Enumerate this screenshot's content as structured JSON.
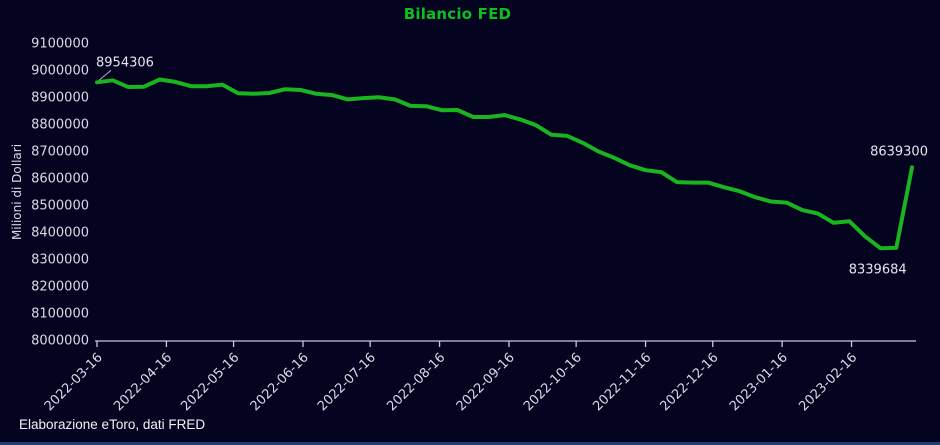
{
  "title": "Bilancio FED",
  "y_axis_title": "Milioni di Dollari",
  "footer": "Elaborazione eToro, dati FRED",
  "colors": {
    "background": "#040420",
    "title_green": "#0cc11e",
    "line_green": "#19b41f",
    "axis_text": "#d9d9e6",
    "annotation_text": "#e4e4ee",
    "axis_line": "#c8c8da",
    "leader_line": "#9a9aa8",
    "bottom_border_blue": "#1e3f74"
  },
  "chart_data": {
    "type": "line",
    "title": "Bilancio FED",
    "xlabel": "",
    "ylabel": "Milioni di Dollari",
    "ylim": [
      8000000,
      9100000
    ],
    "grid": false,
    "legend": false,
    "y_ticks": [
      9100000,
      9000000,
      8900000,
      8800000,
      8700000,
      8600000,
      8500000,
      8400000,
      8300000,
      8200000,
      8100000,
      8000000
    ],
    "x_tick_labels": [
      "2022-03-16",
      "2022-04-16",
      "2022-05-16",
      "2022-06-16",
      "2022-07-16",
      "2022-08-16",
      "2022-09-16",
      "2022-10-16",
      "2022-11-16",
      "2022-12-16",
      "2023-01-16",
      "2023-02-16"
    ],
    "x": [
      "2022-03-16",
      "2022-03-23",
      "2022-03-30",
      "2022-04-06",
      "2022-04-13",
      "2022-04-20",
      "2022-04-27",
      "2022-05-04",
      "2022-05-11",
      "2022-05-18",
      "2022-05-25",
      "2022-06-01",
      "2022-06-08",
      "2022-06-15",
      "2022-06-22",
      "2022-06-29",
      "2022-07-06",
      "2022-07-13",
      "2022-07-20",
      "2022-07-27",
      "2022-08-03",
      "2022-08-10",
      "2022-08-17",
      "2022-08-24",
      "2022-08-31",
      "2022-09-07",
      "2022-09-14",
      "2022-09-21",
      "2022-09-28",
      "2022-10-05",
      "2022-10-12",
      "2022-10-19",
      "2022-10-26",
      "2022-11-02",
      "2022-11-09",
      "2022-11-16",
      "2022-11-23",
      "2022-11-30",
      "2022-12-07",
      "2022-12-14",
      "2022-12-21",
      "2022-12-28",
      "2023-01-04",
      "2023-01-11",
      "2023-01-18",
      "2023-01-25",
      "2023-02-01",
      "2023-02-08",
      "2023-02-15",
      "2023-02-22",
      "2023-03-01",
      "2023-03-08",
      "2023-03-15"
    ],
    "values": [
      8954306,
      8962000,
      8937000,
      8938000,
      8965000,
      8956000,
      8940000,
      8940000,
      8946000,
      8914000,
      8912000,
      8915000,
      8929000,
      8926000,
      8912000,
      8907000,
      8891000,
      8896000,
      8899000,
      8891000,
      8867000,
      8866000,
      8851000,
      8852000,
      8826000,
      8826000,
      8833000,
      8817000,
      8796000,
      8760000,
      8756000,
      8730000,
      8698000,
      8675000,
      8647000,
      8629000,
      8622000,
      8585000,
      8583000,
      8583000,
      8566000,
      8551000,
      8529000,
      8513000,
      8509000,
      8481000,
      8468000,
      8434000,
      8440000,
      8384000,
      8339684,
      8342000,
      8639300
    ],
    "annotations": [
      {
        "text": "8954306",
        "point": "first"
      },
      {
        "text": "8339684",
        "point": "min"
      },
      {
        "text": "8639300",
        "point": "last"
      }
    ]
  }
}
